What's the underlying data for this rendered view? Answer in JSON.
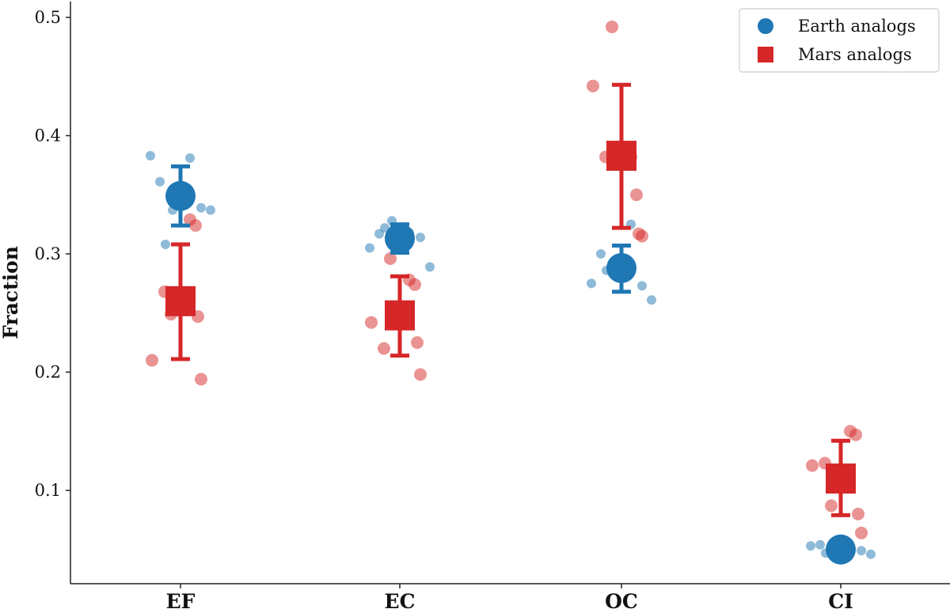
{
  "chart_data": {
    "type": "scatter",
    "title": "",
    "xlabel": "",
    "ylabel": "Fraction",
    "categories": [
      "EF",
      "EC",
      "OC",
      "CI"
    ],
    "ylim": [
      0.0,
      0.52
    ],
    "yticks": [
      "0.1",
      "0.2",
      "0.3",
      "0.4",
      "0.5"
    ],
    "grid": false,
    "legend": "top-right",
    "colors": {
      "earth": "#1f77b4",
      "mars": "#d62728"
    },
    "series": [
      {
        "name": "Earth analogs",
        "marker": "circle",
        "means": [
          0.349,
          0.313,
          0.288,
          0.05
        ],
        "err_low": [
          0.324,
          0.301,
          0.268,
          0.05
        ],
        "err_high": [
          0.374,
          0.325,
          0.307,
          0.05
        ],
        "points": [
          [
            0.383,
            0.361,
            0.337,
            0.308,
            0.381,
            0.339,
            0.337
          ],
          [
            0.305,
            0.317,
            0.328,
            0.322,
            0.318,
            0.314,
            0.289
          ],
          [
            0.275,
            0.3,
            0.293,
            0.286,
            0.325,
            0.273,
            0.261
          ],
          [
            0.053,
            0.054,
            0.049,
            0.047,
            0.048,
            0.049,
            0.046
          ]
        ]
      },
      {
        "name": "Mars analogs",
        "marker": "square",
        "means": [
          0.26,
          0.248,
          0.383,
          0.11
        ],
        "err_low": [
          0.211,
          0.214,
          0.322,
          0.079
        ],
        "err_high": [
          0.308,
          0.281,
          0.443,
          0.142
        ],
        "points": [
          [
            0.21,
            0.268,
            0.249,
            0.329,
            0.324,
            0.247,
            0.194
          ],
          [
            0.242,
            0.22,
            0.296,
            0.278,
            0.274,
            0.225,
            0.198
          ],
          [
            0.442,
            0.382,
            0.492,
            0.382,
            0.35,
            0.317,
            0.315
          ],
          [
            0.121,
            0.123,
            0.087,
            0.15,
            0.147,
            0.08,
            0.064
          ]
        ]
      }
    ]
  }
}
